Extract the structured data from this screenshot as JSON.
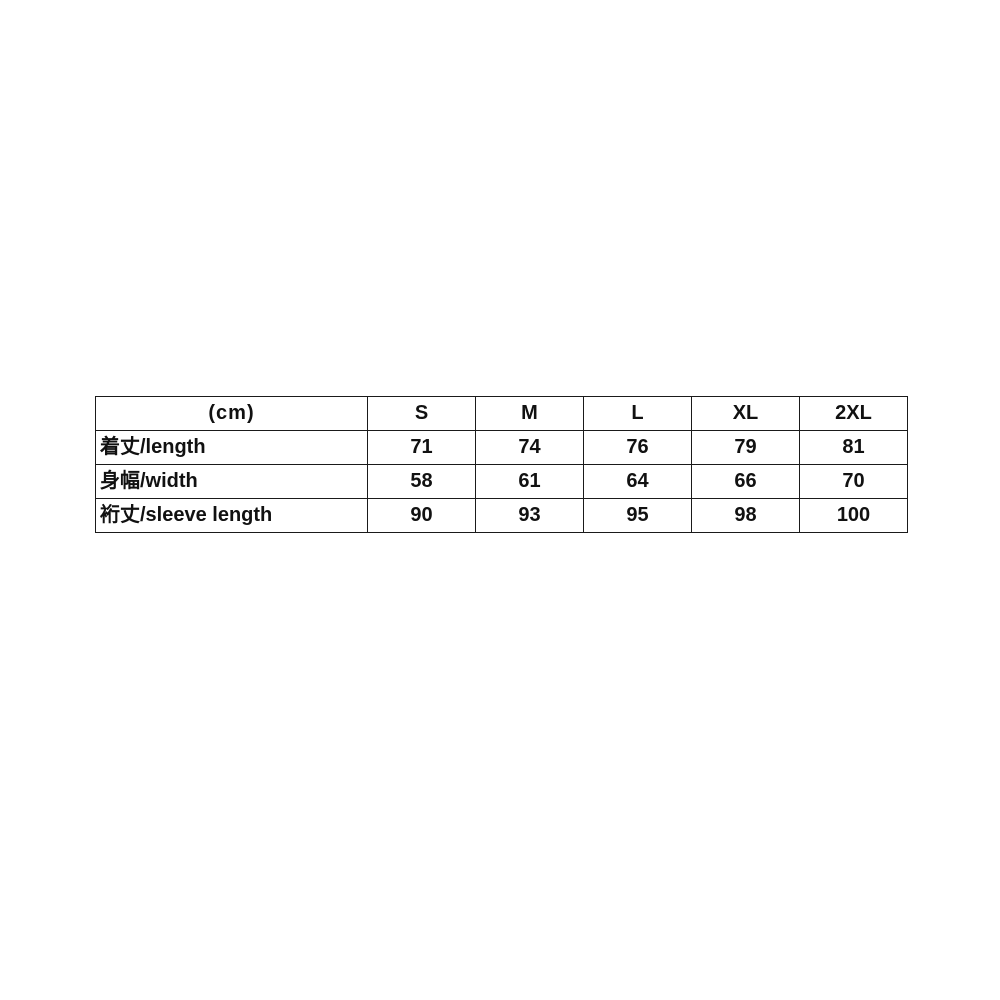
{
  "chart_data": {
    "type": "table",
    "unit_label": "(cm)",
    "columns": [
      "(cm)",
      "S",
      "M",
      "L",
      "XL",
      "2XL"
    ],
    "rows": [
      [
        "着丈/length",
        71,
        74,
        76,
        79,
        81
      ],
      [
        "身幅/width",
        58,
        61,
        64,
        66,
        70
      ],
      [
        "裄丈/sleeve length",
        90,
        93,
        95,
        98,
        100
      ]
    ],
    "row_labels": [
      "着丈/length",
      "身幅/width",
      "裄丈/sleeve length"
    ],
    "size_labels": [
      "S",
      "M",
      "L",
      "XL",
      "2XL"
    ]
  },
  "colors": {
    "border": "#1a1a1a",
    "text": "#111111",
    "background": "#ffffff"
  }
}
